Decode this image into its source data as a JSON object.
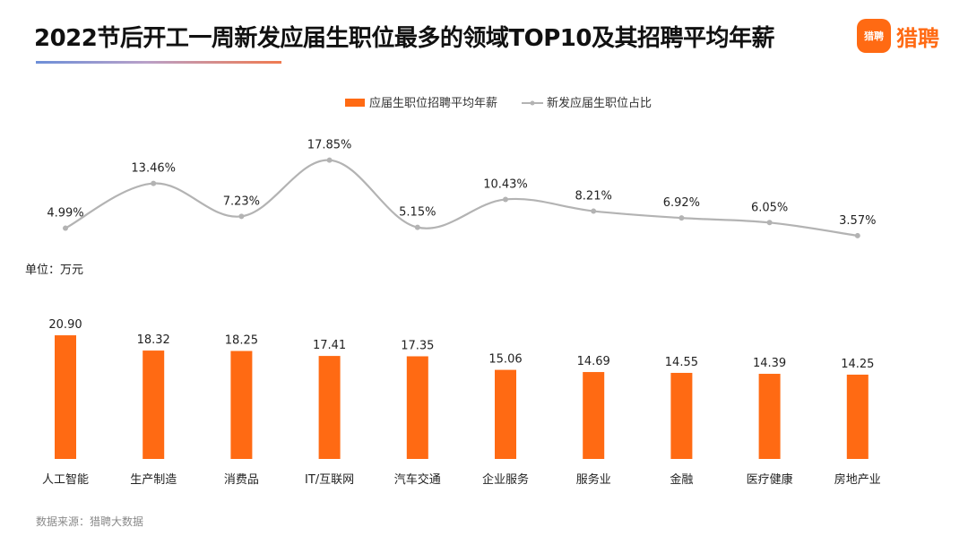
{
  "title": "2022节后开工一周新发应届生职位最多的领域TOP10及其招聘平均年薪",
  "brand": {
    "badge": "猎聘",
    "name": "猎聘"
  },
  "unit_label": "单位：万元",
  "source": "数据来源：猎聘大数据",
  "colors": {
    "bar": "#ff6a13",
    "line": "#b3b3b3",
    "brand": "#ff6a13"
  },
  "chart_data": {
    "type": "bar+line",
    "categories": [
      "人工智能",
      "生产制造",
      "消费品",
      "IT/互联网",
      "汽车交通",
      "企业服务",
      "服务业",
      "金融",
      "医疗健康",
      "房地产业"
    ],
    "series": [
      {
        "name": "应届生职位招聘平均年薪",
        "type": "bar",
        "values": [
          20.9,
          18.32,
          18.25,
          17.41,
          17.35,
          15.06,
          14.69,
          14.55,
          14.39,
          14.25
        ],
        "labels": [
          "20.90",
          "18.32",
          "18.25",
          "17.41",
          "17.35",
          "15.06",
          "14.69",
          "14.55",
          "14.39",
          "14.25"
        ]
      },
      {
        "name": "新发应届生职位占比",
        "type": "line",
        "values": [
          4.99,
          13.46,
          7.23,
          17.85,
          5.15,
          10.43,
          8.21,
          6.92,
          6.05,
          3.57
        ],
        "labels": [
          "4.99%",
          "13.46%",
          "7.23%",
          "17.85%",
          "5.15%",
          "10.43%",
          "8.21%",
          "6.92%",
          "6.05%",
          "3.57%"
        ]
      }
    ],
    "bar_ylim": [
      0,
      22
    ],
    "line_ylim": [
      0,
      20
    ]
  }
}
